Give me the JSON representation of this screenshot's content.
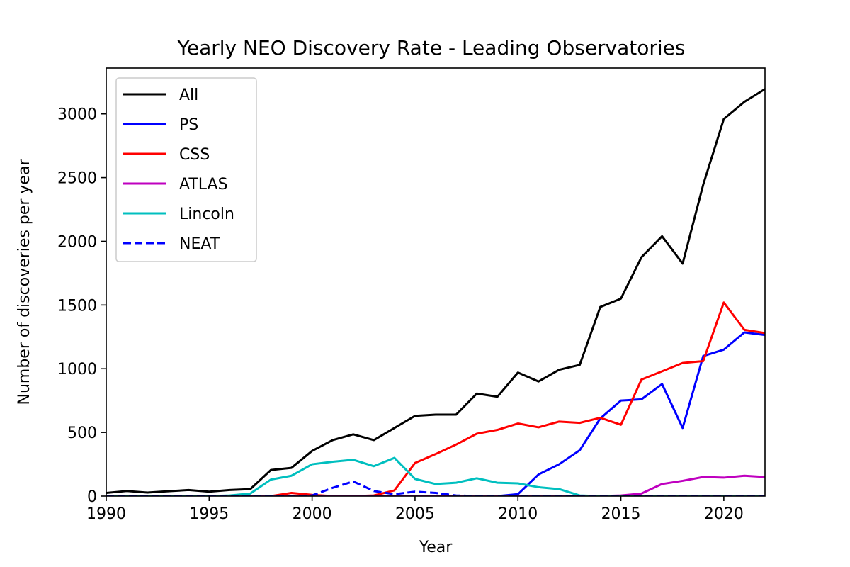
{
  "chart_data": {
    "type": "line",
    "title": "Yearly NEO Discovery Rate - Leading Observatories",
    "xlabel": "Year",
    "ylabel": "Number of discoveries per year",
    "xlim": [
      1990,
      2022
    ],
    "ylim": [
      0,
      3360
    ],
    "x_ticks": [
      1990,
      1995,
      2000,
      2005,
      2010,
      2015,
      2020
    ],
    "y_ticks": [
      0,
      500,
      1000,
      1500,
      2000,
      2500,
      3000
    ],
    "grid": false,
    "legend_position": "top-left",
    "x": [
      1990,
      1991,
      1992,
      1993,
      1994,
      1995,
      1996,
      1997,
      1998,
      1999,
      2000,
      2001,
      2002,
      2003,
      2004,
      2005,
      2006,
      2007,
      2008,
      2009,
      2010,
      2011,
      2012,
      2013,
      2014,
      2015,
      2016,
      2017,
      2018,
      2019,
      2020,
      2021,
      2022
    ],
    "series": [
      {
        "name": "All",
        "color": "#000000",
        "dash": "solid",
        "values": [
          25,
          40,
          28,
          38,
          48,
          35,
          48,
          55,
          205,
          222,
          355,
          440,
          485,
          440,
          535,
          630,
          640,
          640,
          805,
          780,
          970,
          900,
          992,
          1030,
          1485,
          1550,
          1875,
          2040,
          1825,
          2445,
          2960,
          3095,
          3195
        ]
      },
      {
        "name": "PS",
        "color": "#0000ff",
        "dash": "solid",
        "values": [
          0,
          0,
          0,
          0,
          0,
          0,
          0,
          0,
          0,
          0,
          0,
          0,
          0,
          0,
          0,
          0,
          0,
          0,
          0,
          0,
          15,
          170,
          250,
          360,
          610,
          750,
          760,
          880,
          535,
          1100,
          1150,
          1285,
          1265
        ]
      },
      {
        "name": "CSS",
        "color": "#ff0000",
        "dash": "solid",
        "values": [
          0,
          0,
          0,
          0,
          0,
          0,
          0,
          0,
          0,
          25,
          10,
          0,
          0,
          5,
          45,
          260,
          330,
          405,
          490,
          520,
          570,
          540,
          585,
          575,
          615,
          560,
          915,
          980,
          1045,
          1060,
          1520,
          1305,
          1280
        ]
      },
      {
        "name": "ATLAS",
        "color": "#bf00bf",
        "dash": "solid",
        "values": [
          0,
          0,
          0,
          0,
          0,
          0,
          0,
          0,
          0,
          0,
          0,
          0,
          0,
          0,
          0,
          0,
          0,
          0,
          0,
          0,
          0,
          0,
          0,
          0,
          0,
          5,
          20,
          95,
          120,
          150,
          145,
          160,
          150
        ]
      },
      {
        "name": "Lincoln",
        "color": "#00bfbf",
        "dash": "solid",
        "values": [
          0,
          0,
          0,
          0,
          0,
          0,
          5,
          20,
          130,
          160,
          250,
          270,
          285,
          235,
          300,
          135,
          95,
          105,
          140,
          105,
          100,
          70,
          55,
          5,
          0,
          0,
          0,
          0,
          0,
          0,
          0,
          0,
          0
        ]
      },
      {
        "name": "NEAT",
        "color": "#0000ff",
        "dash": "dashed",
        "values": [
          0,
          0,
          0,
          0,
          0,
          0,
          0,
          0,
          0,
          0,
          5,
          65,
          115,
          40,
          15,
          35,
          25,
          5,
          0,
          0,
          0,
          0,
          0,
          0,
          0,
          0,
          0,
          0,
          0,
          0,
          0,
          0,
          0
        ]
      }
    ]
  }
}
